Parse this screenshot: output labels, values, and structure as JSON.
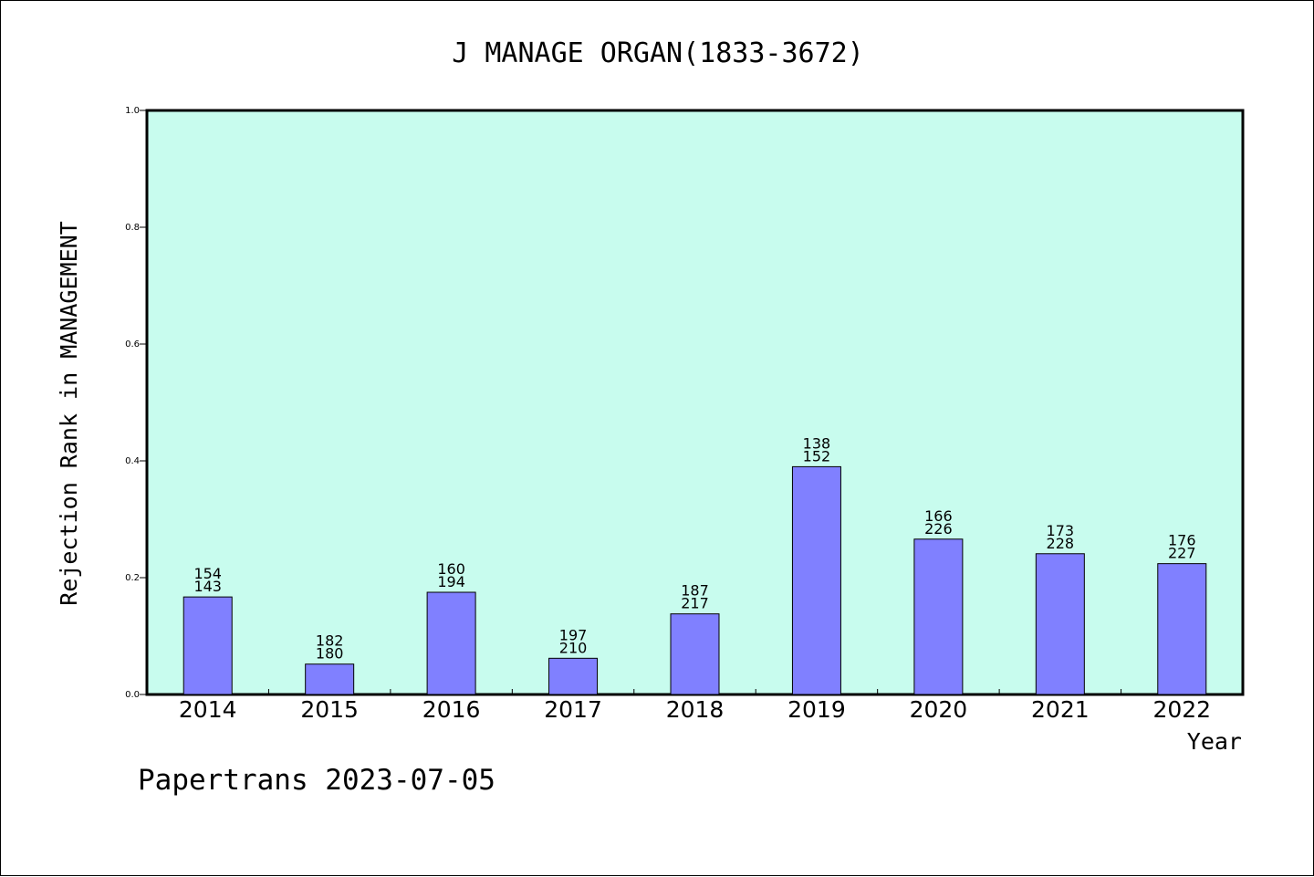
{
  "chart_data": {
    "type": "bar",
    "title": "J MANAGE ORGAN(1833-3672)",
    "xlabel": "Year",
    "ylabel": "Rejection Rank in MANAGEMENT",
    "ylim": [
      0,
      1.0
    ],
    "yticks": [
      "0.0",
      "0.2",
      "0.4",
      "0.6",
      "0.8",
      "1.0"
    ],
    "categories": [
      "2014",
      "2015",
      "2016",
      "2017",
      "2018",
      "2019",
      "2020",
      "2021",
      "2022"
    ],
    "values": [
      0.167,
      0.052,
      0.175,
      0.062,
      0.138,
      0.39,
      0.266,
      0.241,
      0.224
    ],
    "label_top": [
      "154",
      "182",
      "160",
      "197",
      "187",
      "138",
      "166",
      "173",
      "176"
    ],
    "label_bottom": [
      "143",
      "180",
      "194",
      "210",
      "217",
      "152",
      "226",
      "228",
      "227"
    ],
    "plot_background": "#c8fcee",
    "bar_color": "#8080ff",
    "grid": false
  },
  "footer": "Papertrans 2023-07-05"
}
